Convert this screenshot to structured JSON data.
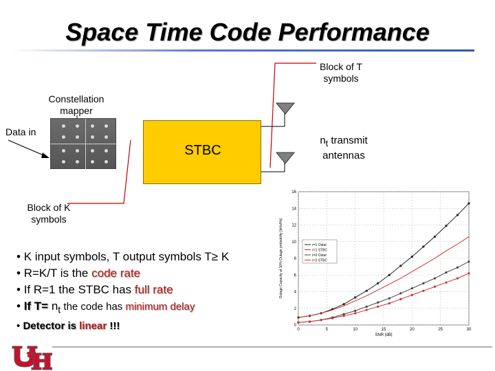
{
  "slide": {
    "title": "Space Time Code Performance"
  },
  "diagram": {
    "block_t_line1": "Block of T",
    "block_t_line2": "symbols",
    "mapper_line1": "Constellation",
    "mapper_line2": "mapper",
    "data_in": "Data in",
    "stbc": "STBC",
    "nt_n": "n",
    "nt_sub": "t",
    "nt_rest": " transmit",
    "antennas": "antennas",
    "block_k_line1": "Block of K",
    "block_k_line2": "symbols"
  },
  "bullets": {
    "b1_text": "K input symbols, T output symbols T",
    "b1_symbol": "≥",
    "b1_end": " K",
    "b2_text": "R=K/T is the ",
    "b2_red": "code rate",
    "b3_text": "If R=1 the STBC has ",
    "b3_red": "full rate",
    "b4_bold": "If T=",
    "b4_n": " n",
    "b4_sub": "t",
    "b4_mid": " the code has ",
    "b4_red": "minimum delay",
    "b5_bold": "Detector is ",
    "b5_red": "linear",
    "b5_end": " !!!",
    "bullet_char": "•"
  },
  "chart_data": {
    "type": "line",
    "xlabel": "SNR [dB]",
    "ylabel": "Outage Capacity at 10% Outage probability [bit/s/Hz]",
    "xlim": [
      0,
      30
    ],
    "ylim": [
      0,
      16
    ],
    "x_ticks": [
      "0",
      "5",
      "10",
      "15",
      "20",
      "25",
      "30"
    ],
    "y_ticks": [
      "0",
      "2",
      "4",
      "6",
      "8",
      "10",
      "12",
      "14",
      "16"
    ],
    "x": [
      0,
      2,
      4,
      6,
      8,
      10,
      12,
      14,
      16,
      18,
      20,
      22,
      24,
      26,
      28,
      30
    ],
    "series": [
      {
        "name": "r=1 Ostat",
        "color": "#222222",
        "marker": true,
        "values": [
          0.9,
          1.1,
          1.4,
          1.9,
          2.5,
          3.3,
          4.1,
          5.0,
          6.0,
          7.1,
          8.2,
          9.4,
          10.6,
          11.9,
          13.2,
          14.6
        ]
      },
      {
        "name": "r=1 STBC",
        "color": "#d03030",
        "marker": false,
        "values": [
          0.9,
          1.1,
          1.4,
          1.8,
          2.3,
          2.9,
          3.5,
          4.2,
          4.9,
          5.6,
          6.4,
          7.2,
          8.0,
          8.9,
          9.7,
          10.6
        ]
      },
      {
        "name": "r=2 Ostat",
        "color": "#444444",
        "marker": true,
        "values": [
          0.3,
          0.4,
          0.6,
          0.9,
          1.3,
          1.7,
          2.2,
          2.7,
          3.2,
          3.8,
          4.4,
          5.0,
          5.6,
          6.3,
          6.9,
          7.6
        ]
      },
      {
        "name": "r=2 STBC",
        "color": "#d03030",
        "marker": true,
        "values": [
          0.3,
          0.4,
          0.6,
          0.8,
          1.1,
          1.4,
          1.8,
          2.2,
          2.6,
          3.1,
          3.6,
          4.1,
          4.6,
          5.1,
          5.6,
          6.2
        ]
      }
    ],
    "legend_position": "upper-left",
    "grid": true
  }
}
